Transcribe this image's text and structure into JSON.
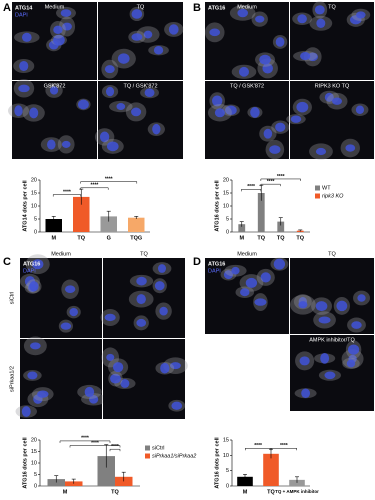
{
  "panels": [
    {
      "letter": "A",
      "stain": [
        "ATG14",
        "DAPI"
      ],
      "images": [
        "Medium",
        "TQ",
        "GSK'872",
        "TQ / GSK'872"
      ]
    },
    {
      "letter": "B",
      "stain": [
        "ATG16"
      ],
      "images": [
        "Medium",
        "TQ",
        "TQ / GSK'872",
        "RIPK3 KO TQ"
      ]
    },
    {
      "letter": "C",
      "stain": [
        "ATG16",
        "DAPI"
      ],
      "images": [
        "Medium",
        "TQ"
      ],
      "rows": [
        "siCtrl",
        "siPrkaa1/2"
      ]
    },
    {
      "letter": "D",
      "stain": [
        "ATG16",
        "DAPI"
      ],
      "images": [
        "Medium",
        "TQ",
        "AMPK inhibitor/TQ"
      ]
    }
  ],
  "chart_data": [
    {
      "type": "bar",
      "y_label": "ATG14 dots per cell",
      "categories": [
        "M",
        "TQ",
        "G",
        "TQG"
      ],
      "values": [
        5,
        13.5,
        6,
        5.5
      ],
      "errors": [
        1,
        3,
        2,
        0.5
      ],
      "colors": [
        "#000000",
        "#f05a28",
        "#999999",
        "#f6a868"
      ],
      "ylim": [
        0,
        20
      ],
      "yticks": [
        0,
        5,
        10,
        15,
        20
      ],
      "annotations": [
        "****",
        "****",
        "****"
      ]
    },
    {
      "type": "bar",
      "y_label": "ATG16 dots per cell",
      "categories": [
        "M",
        "TQ",
        "TQ",
        "TQ"
      ],
      "series": [
        {
          "name": "WT",
          "color": "#808080",
          "values": [
            3,
            15,
            4,
            null
          ],
          "errors": [
            1,
            3,
            1.5,
            null
          ]
        },
        {
          "name": "ripk3 KO",
          "color": "#f05a28",
          "values": [
            null,
            null,
            null,
            0.5
          ],
          "errors": [
            null,
            null,
            null,
            0.3
          ]
        }
      ],
      "ylim": [
        0,
        20
      ],
      "yticks": [
        0,
        5,
        10,
        15,
        20
      ],
      "annotations": [
        "****",
        "****",
        "****"
      ]
    },
    {
      "type": "bar",
      "y_label": "ATG16 dots per cell",
      "categories": [
        "M",
        "TQ"
      ],
      "series": [
        {
          "name": "siCtrl",
          "color": "#808080",
          "values": [
            3,
            13
          ],
          "errors": [
            1.5,
            5
          ]
        },
        {
          "name": "siPrkaa1/siPrkaa2",
          "color": "#f05a28",
          "values": [
            2,
            4
          ],
          "errors": [
            1,
            2
          ]
        }
      ],
      "ylim": [
        0,
        20
      ],
      "yticks": [
        0,
        5,
        10,
        15,
        20
      ],
      "annotations": [
        "****",
        "****",
        "****"
      ]
    },
    {
      "type": "bar",
      "y_label": "ATG16 dots per cell",
      "categories": [
        "M",
        "TQ",
        "TQ + AMPK inhibitor"
      ],
      "values": [
        3,
        10.5,
        2
      ],
      "errors": [
        0.8,
        1.5,
        1
      ],
      "colors": [
        "#000000",
        "#f05a28",
        "#999999"
      ],
      "ylim": [
        0,
        15
      ],
      "yticks": [
        0,
        5,
        10,
        15
      ],
      "annotations": [
        "****",
        "****"
      ]
    }
  ]
}
